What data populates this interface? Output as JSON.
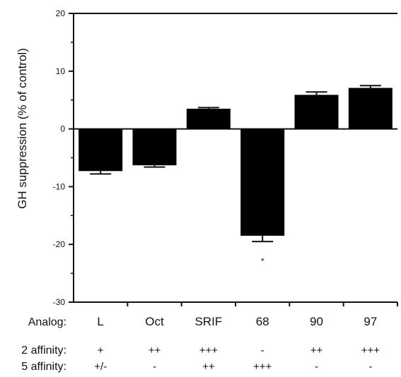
{
  "chart_data": {
    "type": "bar",
    "categories": [
      "L",
      "Oct",
      "SRIF",
      "68",
      "90",
      "97"
    ],
    "values": [
      -7.3,
      -6.3,
      3.5,
      -18.5,
      5.9,
      7.1
    ],
    "errors": [
      0.5,
      0.3,
      0.2,
      1.0,
      0.5,
      0.4
    ],
    "ylabel": "GH suppression (% of control)",
    "ylim": [
      -30,
      20
    ],
    "yticks": [
      20,
      10,
      0,
      -10,
      -20,
      -30
    ],
    "yticks_labels": [
      "20",
      "10",
      "0",
      "-10",
      "-20",
      "-30"
    ],
    "annotations": [
      {
        "category": "68",
        "text": "*"
      }
    ],
    "table": {
      "analog_label": "Analog:",
      "rows": [
        {
          "label": "2 affinity:",
          "values": [
            "+",
            "++",
            "+++",
            "-",
            "++",
            "+++"
          ]
        },
        {
          "label": "5 affinity:",
          "values": [
            "+/-",
            "-",
            "++",
            "+++",
            "-",
            "-"
          ]
        }
      ]
    },
    "grid": false,
    "legend": "none",
    "colors": {
      "bars": "#000000",
      "axis": "#111111",
      "text": "#111111"
    }
  }
}
